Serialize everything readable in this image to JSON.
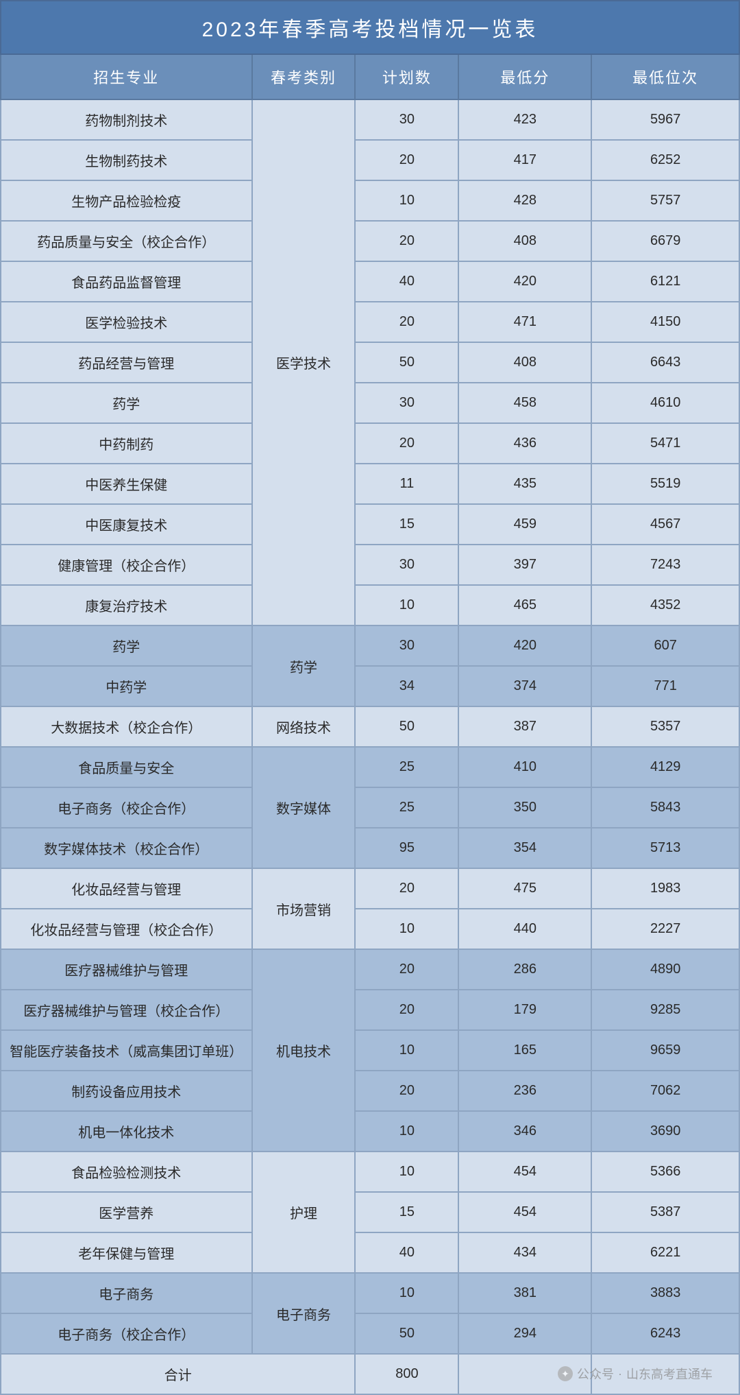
{
  "title": "2023年春季高考投档情况一览表",
  "columns": [
    "招生专业",
    "春考类别",
    "计划数",
    "最低分",
    "最低位次"
  ],
  "col_widths": [
    "34%",
    "14%",
    "14%",
    "18%",
    "20%"
  ],
  "colors": {
    "title_bg": "#4d78ad",
    "header_bg": "#6b8fba",
    "border": "#8ea5c2",
    "text": "#2a2a2a",
    "white": "#ffffff",
    "band_light": "#d4dfed",
    "band_dark": "#a6bdd9"
  },
  "groups": [
    {
      "category": "医学技术",
      "shade": "light",
      "rows": [
        {
          "major": "药物制剂技术",
          "plan": "30",
          "score": "423",
          "rank": "5967"
        },
        {
          "major": "生物制药技术",
          "plan": "20",
          "score": "417",
          "rank": "6252"
        },
        {
          "major": "生物产品检验检疫",
          "plan": "10",
          "score": "428",
          "rank": "5757"
        },
        {
          "major": "药品质量与安全（校企合作）",
          "plan": "20",
          "score": "408",
          "rank": "6679"
        },
        {
          "major": "食品药品监督管理",
          "plan": "40",
          "score": "420",
          "rank": "6121"
        },
        {
          "major": "医学检验技术",
          "plan": "20",
          "score": "471",
          "rank": "4150"
        },
        {
          "major": "药品经营与管理",
          "plan": "50",
          "score": "408",
          "rank": "6643"
        },
        {
          "major": "药学",
          "plan": "30",
          "score": "458",
          "rank": "4610"
        },
        {
          "major": "中药制药",
          "plan": "20",
          "score": "436",
          "rank": "5471"
        },
        {
          "major": "中医养生保健",
          "plan": "11",
          "score": "435",
          "rank": "5519"
        },
        {
          "major": "中医康复技术",
          "plan": "15",
          "score": "459",
          "rank": "4567"
        },
        {
          "major": "健康管理（校企合作）",
          "plan": "30",
          "score": "397",
          "rank": "7243"
        },
        {
          "major": "康复治疗技术",
          "plan": "10",
          "score": "465",
          "rank": "4352"
        }
      ]
    },
    {
      "category": "药学",
      "shade": "dark",
      "rows": [
        {
          "major": "药学",
          "plan": "30",
          "score": "420",
          "rank": "607"
        },
        {
          "major": "中药学",
          "plan": "34",
          "score": "374",
          "rank": "771"
        }
      ]
    },
    {
      "category": "网络技术",
      "shade": "light",
      "rows": [
        {
          "major": "大数据技术（校企合作）",
          "plan": "50",
          "score": "387",
          "rank": "5357"
        }
      ]
    },
    {
      "category": "数字媒体",
      "shade": "dark",
      "rows": [
        {
          "major": "食品质量与安全",
          "plan": "25",
          "score": "410",
          "rank": "4129"
        },
        {
          "major": "电子商务（校企合作）",
          "plan": "25",
          "score": "350",
          "rank": "5843"
        },
        {
          "major": "数字媒体技术（校企合作）",
          "plan": "95",
          "score": "354",
          "rank": "5713"
        }
      ]
    },
    {
      "category": "市场营销",
      "shade": "light",
      "rows": [
        {
          "major": "化妆品经营与管理",
          "plan": "20",
          "score": "475",
          "rank": "1983"
        },
        {
          "major": "化妆品经营与管理（校企合作）",
          "plan": "10",
          "score": "440",
          "rank": "2227"
        }
      ]
    },
    {
      "category": "机电技术",
      "shade": "dark",
      "rows": [
        {
          "major": "医疗器械维护与管理",
          "plan": "20",
          "score": "286",
          "rank": "4890"
        },
        {
          "major": "医疗器械维护与管理（校企合作）",
          "plan": "20",
          "score": "179",
          "rank": "9285"
        },
        {
          "major": "智能医疗装备技术（威高集团订单班）",
          "plan": "10",
          "score": "165",
          "rank": "9659"
        },
        {
          "major": "制药设备应用技术",
          "plan": "20",
          "score": "236",
          "rank": "7062"
        },
        {
          "major": "机电一体化技术",
          "plan": "10",
          "score": "346",
          "rank": "3690"
        }
      ]
    },
    {
      "category": "护理",
      "shade": "light",
      "rows": [
        {
          "major": "食品检验检测技术",
          "plan": "10",
          "score": "454",
          "rank": "5366"
        },
        {
          "major": "医学营养",
          "plan": "15",
          "score": "454",
          "rank": "5387"
        },
        {
          "major": "老年保健与管理",
          "plan": "40",
          "score": "434",
          "rank": "6221"
        }
      ]
    },
    {
      "category": "电子商务",
      "shade": "dark",
      "rows": [
        {
          "major": "电子商务",
          "plan": "10",
          "score": "381",
          "rank": "3883"
        },
        {
          "major": "电子商务（校企合作）",
          "plan": "50",
          "score": "294",
          "rank": "6243"
        }
      ]
    }
  ],
  "total": {
    "label": "合计",
    "plan": "800",
    "score": "",
    "rank": "",
    "shade": "light"
  },
  "watermark": {
    "prefix": "公众号",
    "sep": "·",
    "name": "山东高考直通车"
  },
  "typography": {
    "title_fontsize": 30,
    "header_fontsize": 22,
    "cell_fontsize": 20
  }
}
